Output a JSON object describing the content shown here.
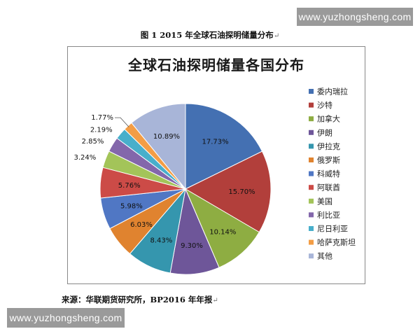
{
  "watermark_top": "www.yuzhongsheng.com",
  "watermark_bottom": "www.yuzhongsheng.com",
  "figure_caption": "图 1   2015 年全球石油探明储量分布",
  "source_text": "来源：华联期货研究所，BP2016 年年报",
  "chart_data": {
    "type": "pie",
    "title": "全球石油探明储量各国分布",
    "legend_position": "right",
    "categories": [
      "委内瑞拉",
      "沙特",
      "加拿大",
      "伊朗",
      "伊拉克",
      "俄罗斯",
      "科威特",
      "阿联酋",
      "美国",
      "利比亚",
      "尼日利亚",
      "哈萨克斯坦",
      "其他"
    ],
    "values": [
      17.73,
      15.7,
      10.14,
      9.3,
      8.43,
      6.03,
      5.98,
      5.76,
      3.24,
      2.85,
      2.19,
      1.77,
      10.89
    ],
    "labels": [
      "17.73%",
      "15.70%",
      "10.14%",
      "9.30%",
      "8.43%",
      "6.03%",
      "5.98%",
      "5.76%",
      "3.24%",
      "2.85%",
      "2.19%",
      "1.77%",
      "10.89%"
    ],
    "colors": [
      "#4470B2",
      "#B23F3B",
      "#8EAD42",
      "#6E5699",
      "#3596AE",
      "#E0832F",
      "#5077C4",
      "#CC4B47",
      "#A3C459",
      "#8367AB",
      "#48AFCB",
      "#F39D45",
      "#A8B5D8"
    ]
  }
}
